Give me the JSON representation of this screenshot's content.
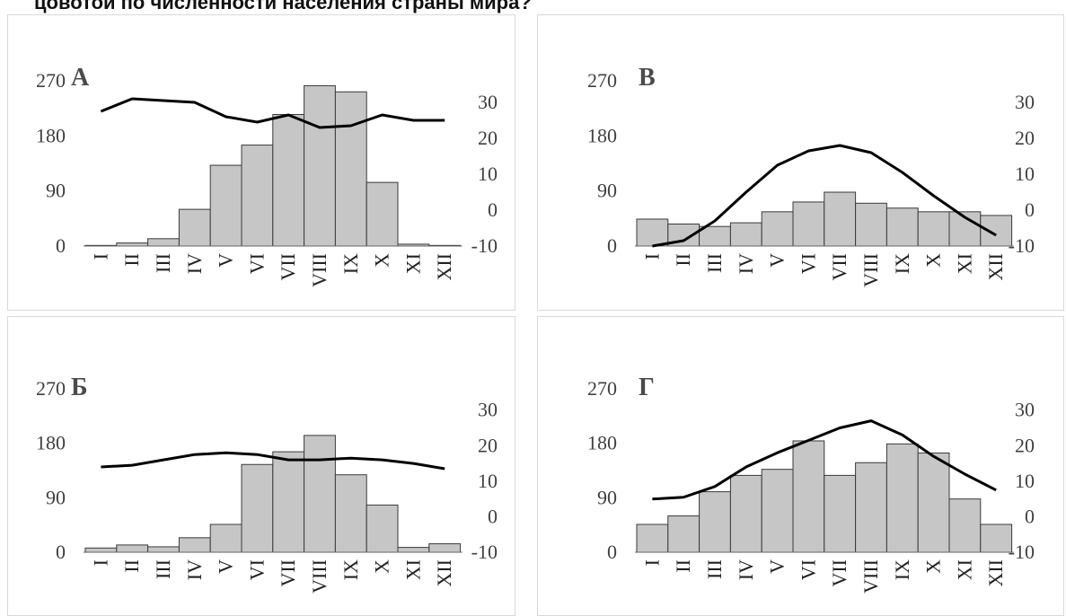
{
  "header": {
    "text": "цовотой по численности населения страны мира?"
  },
  "months": [
    "I",
    "II",
    "III",
    "IV",
    "V",
    "VI",
    "VII",
    "VIII",
    "IX",
    "X",
    "XI",
    "XII"
  ],
  "colors": {
    "bar": "#c6c6c6",
    "bar_stroke": "#3a3a3a",
    "line": "#000000",
    "text": "#404040"
  },
  "chart_data": [
    {
      "type": "bar+line",
      "label": "А",
      "left_axis": {
        "ticks": [
          "270",
          "180",
          "90",
          "0"
        ],
        "ylim": [
          0,
          270
        ]
      },
      "right_axis": {
        "ticks": [
          "30",
          "20",
          "10",
          "0",
          "-10"
        ],
        "ylim": [
          -10,
          30
        ]
      },
      "categories": [
        "I",
        "II",
        "III",
        "IV",
        "V",
        "VI",
        "VII",
        "VIII",
        "IX",
        "X",
        "XI",
        "XII"
      ],
      "bars": [
        1,
        5,
        12,
        60,
        132,
        165,
        215,
        262,
        252,
        104,
        3,
        1
      ],
      "line": [
        27.5,
        31,
        30.5,
        30,
        26,
        24.5,
        26.5,
        23,
        23.5,
        26.5,
        25,
        25
      ]
    },
    {
      "type": "bar+line",
      "label": "В",
      "left_axis": {
        "ticks": [
          "270",
          "180",
          "90",
          "0"
        ],
        "ylim": [
          0,
          270
        ]
      },
      "right_axis": {
        "ticks": [
          "30",
          "20",
          "10",
          "0",
          "-10"
        ],
        "ylim": [
          -10,
          30
        ]
      },
      "categories": [
        "I",
        "II",
        "III",
        "IV",
        "V",
        "VI",
        "VII",
        "VIII",
        "IX",
        "X",
        "XI",
        "XII"
      ],
      "bars": [
        44,
        36,
        32,
        38,
        56,
        72,
        88,
        70,
        62,
        56,
        56,
        50
      ],
      "line": [
        -10,
        -8.5,
        -3,
        5,
        12.5,
        16.5,
        18,
        16,
        10.5,
        4,
        -2,
        -7
      ]
    },
    {
      "type": "bar+line",
      "label": "Б",
      "left_axis": {
        "ticks": [
          "270",
          "180",
          "90",
          "0"
        ],
        "ylim": [
          0,
          270
        ]
      },
      "right_axis": {
        "ticks": [
          "30",
          "20",
          "10",
          "0",
          "-10"
        ],
        "ylim": [
          -10,
          30
        ]
      },
      "categories": [
        "I",
        "II",
        "III",
        "IV",
        "V",
        "VI",
        "VII",
        "VIII",
        "IX",
        "X",
        "XI",
        "XII"
      ],
      "bars": [
        7,
        12,
        9,
        24,
        46,
        145,
        166,
        193,
        128,
        78,
        8,
        14
      ],
      "line": [
        14,
        14.5,
        16,
        17.5,
        18,
        17.5,
        16,
        16,
        16.5,
        16,
        15,
        13.5
      ]
    },
    {
      "type": "bar+line",
      "label": "Г",
      "left_axis": {
        "ticks": [
          "270",
          "180",
          "90",
          "0"
        ],
        "ylim": [
          0,
          270
        ]
      },
      "right_axis": {
        "ticks": [
          "30",
          "20",
          "10",
          "0",
          "-10"
        ],
        "ylim": [
          -10,
          30
        ]
      },
      "categories": [
        "I",
        "II",
        "III",
        "IV",
        "V",
        "VI",
        "VII",
        "VIII",
        "IX",
        "X",
        "XI",
        "XII"
      ],
      "bars": [
        46,
        60,
        100,
        127,
        137,
        184,
        127,
        148,
        179,
        164,
        88,
        46
      ],
      "line": [
        5,
        5.5,
        8.5,
        14,
        18,
        21.5,
        25,
        27,
        23,
        17,
        12,
        7.5
      ]
    }
  ]
}
